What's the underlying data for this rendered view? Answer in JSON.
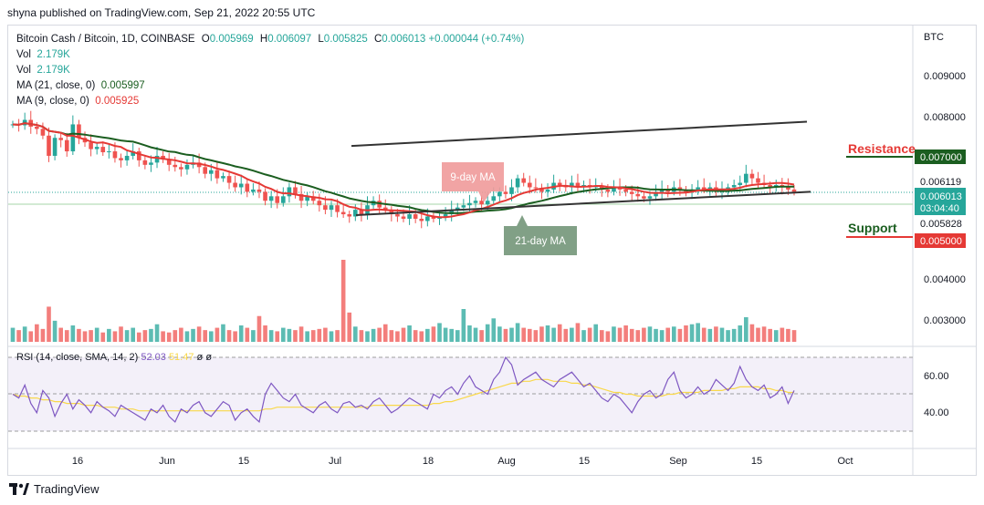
{
  "header": {
    "publisher": "shyna published on TradingView.com, Sep 21, 2022 20:55 UTC"
  },
  "legend": {
    "symbol": "Bitcoin Cash / Bitcoin, 1D, COINBASE",
    "open_key": "O",
    "open": "0.005969",
    "high_key": "H",
    "high": "0.006097",
    "low_key": "L",
    "low": "0.005825",
    "close_key": "C",
    "close": "0.006013",
    "change": "+0.000044 (+0.74%)",
    "vol1_label": "Vol",
    "vol1_value": "2.179K",
    "vol2_label": "Vol",
    "vol2_value": "2.179K",
    "ma21_label": "MA (21, close, 0)",
    "ma21_value": "0.005997",
    "ma9_label": "MA (9, close, 0)",
    "ma9_value": "0.005925"
  },
  "rsi_legend": {
    "label": "RSI (14, close, SMA, 14, 2)",
    "rsi_value": "52.03",
    "sma_value": "51.47",
    "extra1": "ø",
    "extra2": "ø"
  },
  "price_axis": {
    "currency": "BTC",
    "ticks": [
      "0.009000",
      "0.008000",
      "0.004000",
      "0.003000"
    ],
    "tag_6119": "0.006119",
    "tag_current": "0.006013",
    "tag_countdown": "03:04:40",
    "tag_5828": "0.005828",
    "tag_resistance": "0.007000",
    "tag_support": "0.005000"
  },
  "rsi_axis": {
    "ticks": [
      "60.00",
      "40.00"
    ]
  },
  "time_axis": {
    "labels": [
      "16",
      "Jun",
      "15",
      "Jul",
      "18",
      "Aug",
      "15",
      "Sep",
      "15",
      "Oct"
    ]
  },
  "annotations": {
    "ma9": "9-day MA",
    "ma21": "21-day MA",
    "resistance": "Resistance",
    "support": "Support"
  },
  "footer": {
    "brand": "TradingView"
  },
  "colors": {
    "up": "#26a69a",
    "down": "#ef5350",
    "ma9": "#e53935",
    "ma21": "#1b5e20",
    "rsi": "#7e57c2",
    "rsi_sma": "#f9d84a",
    "resistance": "#1b5e20",
    "support": "#e53935"
  },
  "chart_data": [
    {
      "type": "candlestick",
      "title": "Bitcoin Cash / Bitcoin, 1D, COINBASE",
      "ylabel": "BTC",
      "ylim": [
        0.0026,
        0.0097
      ],
      "x_ticks": [
        "16",
        "Jun",
        "15",
        "Jul",
        "18",
        "Aug",
        "15",
        "Sep",
        "15",
        "Oct"
      ],
      "y_ticks": [
        0.009,
        0.008,
        0.004,
        0.003
      ],
      "series": [
        {
          "name": "BCH/BTC",
          "close": [
            0.0075,
            0.00748,
            0.0076,
            0.00745,
            0.0074,
            0.00725,
            0.0068,
            0.0072,
            0.00715,
            0.0069,
            0.0075,
            0.0072,
            0.0071,
            0.00695,
            0.007,
            0.00688,
            0.0069,
            0.00675,
            0.0067,
            0.0068,
            0.0069,
            0.0067,
            0.0066,
            0.00665,
            0.0068,
            0.00672,
            0.0066,
            0.00655,
            0.0065,
            0.0066,
            0.00665,
            0.00655,
            0.0064,
            0.00648,
            0.0063,
            0.00635,
            0.0062,
            0.0061,
            0.00618,
            0.006,
            0.00605,
            0.006,
            0.0058,
            0.0059,
            0.00575,
            0.0059,
            0.0061,
            0.00595,
            0.0058,
            0.0059,
            0.0058,
            0.0057,
            0.0056,
            0.0057,
            0.00555,
            0.0055,
            0.00545,
            0.0056,
            0.0055,
            0.0057,
            0.0058,
            0.00565,
            0.0056,
            0.0055,
            0.00545,
            0.0054,
            0.0055,
            0.0054,
            0.00535,
            0.00545,
            0.0054,
            0.00545,
            0.0055,
            0.0056,
            0.00565,
            0.0057,
            0.00575,
            0.0058,
            0.00572,
            0.0058,
            0.0059,
            0.006,
            0.00595,
            0.0061,
            0.0063,
            0.0062,
            0.0061,
            0.00608,
            0.006,
            0.00605,
            0.0062,
            0.00615,
            0.0061,
            0.0062,
            0.0061,
            0.00615,
            0.0061,
            0.00612,
            0.00605,
            0.006,
            0.0061,
            0.00605,
            0.006,
            0.00595,
            0.0059,
            0.00585,
            0.0059,
            0.006,
            0.00605,
            0.006,
            0.0061,
            0.00605,
            0.006,
            0.00605,
            0.0061,
            0.00605,
            0.0061,
            0.006,
            0.00605,
            0.0061,
            0.00615,
            0.0062,
            0.0064,
            0.0063,
            0.0062,
            0.00615,
            0.0061,
            0.00615,
            0.0061,
            0.00605,
            0.006
          ]
        },
        {
          "name": "MA (21, close, 0)"
        },
        {
          "name": "MA (9, close, 0)"
        }
      ],
      "trendlines": {
        "upper": [
          [
            0.00676,
            0.00702
          ],
          [
            0.00714,
            0.00756
          ]
        ],
        "lower": [
          [
            0.00578,
            0.00548
          ],
          [
            0.0062,
            0.006
          ]
        ]
      },
      "levels": {
        "resistance": 0.007,
        "support": 0.005,
        "current": 0.006013
      }
    },
    {
      "type": "bar",
      "ylabel": "Vol",
      "values": [
        1.2,
        1.0,
        1.3,
        0.9,
        1.5,
        1.1,
        3.0,
        1.8,
        1.2,
        1.0,
        1.4,
        1.1,
        0.9,
        1.0,
        1.2,
        0.8,
        1.1,
        0.9,
        1.3,
        1.0,
        1.2,
        0.8,
        1.0,
        1.1,
        1.5,
        0.9,
        0.8,
        1.0,
        1.2,
        0.9,
        1.1,
        1.3,
        1.0,
        0.9,
        1.2,
        1.5,
        1.0,
        0.9,
        1.4,
        1.2,
        1.0,
        2.2,
        1.4,
        1.0,
        0.9,
        1.2,
        1.1,
        1.0,
        1.3,
        0.9,
        1.0,
        1.1,
        1.2,
        0.9,
        1.0,
        7.0,
        2.5,
        1.3,
        1.0,
        0.9,
        1.1,
        1.2,
        1.5,
        1.0,
        0.9,
        1.2,
        1.4,
        1.0,
        0.9,
        1.1,
        1.3,
        1.6,
        1.2,
        1.1,
        1.0,
        2.8,
        1.4,
        1.2,
        1.0,
        1.5,
        2.0,
        1.3,
        1.1,
        1.2,
        1.6,
        1.2,
        1.1,
        1.0,
        1.3,
        1.4,
        1.2,
        1.5,
        1.1,
        1.2,
        1.6,
        1.0,
        1.2,
        1.5,
        1.0,
        0.9,
        1.3,
        1.2,
        1.4,
        1.1,
        1.0,
        1.2,
        1.3,
        1.1,
        1.0,
        1.2,
        1.3,
        1.1,
        1.4,
        1.5,
        1.6,
        1.2,
        1.1,
        1.3,
        1.2,
        1.0,
        1.1,
        1.4,
        2.1,
        1.5,
        1.2,
        1.3,
        1.1,
        1.0,
        1.2,
        1.1,
        1.0
      ]
    },
    {
      "type": "line",
      "title": "RSI (14, close, SMA, 14, 2)",
      "ylim": [
        30,
        70
      ],
      "y_ticks": [
        60,
        40
      ],
      "series": [
        {
          "name": "RSI",
          "values": [
            50,
            48,
            55,
            45,
            40,
            52,
            48,
            38,
            45,
            50,
            42,
            47,
            44,
            40,
            46,
            43,
            41,
            38,
            44,
            42,
            40,
            38,
            36,
            42,
            40,
            44,
            38,
            35,
            42,
            40,
            44,
            46,
            40,
            38,
            42,
            46,
            44,
            36,
            40,
            42,
            38,
            35,
            50,
            56,
            52,
            48,
            46,
            50,
            44,
            42,
            40,
            44,
            46,
            42,
            40,
            45,
            46,
            43,
            44,
            42,
            46,
            48,
            44,
            40,
            42,
            45,
            48,
            46,
            44,
            42,
            50,
            48,
            52,
            54,
            50,
            56,
            60,
            54,
            52,
            50,
            58,
            62,
            70,
            66,
            55,
            58,
            60,
            62,
            58,
            56,
            54,
            58,
            60,
            62,
            58,
            54,
            56,
            52,
            48,
            46,
            50,
            48,
            44,
            40,
            46,
            50,
            52,
            48,
            50,
            58,
            62,
            52,
            48,
            50,
            54,
            50,
            52,
            58,
            55,
            52,
            56,
            65,
            58,
            54,
            52,
            55,
            48,
            50,
            54,
            45,
            52
          ]
        },
        {
          "name": "RSI SMA",
          "values": [
            50,
            49,
            49,
            48,
            48,
            47,
            47,
            46,
            46,
            45,
            45,
            45,
            44,
            44,
            44,
            43,
            43,
            43,
            42,
            42,
            42,
            41,
            41,
            41,
            41,
            41,
            41,
            41,
            41,
            41,
            41,
            41,
            41,
            41,
            41,
            41,
            41,
            41,
            41,
            41,
            41,
            41,
            42,
            42,
            43,
            43,
            43,
            43,
            43,
            43,
            43,
            43,
            43,
            43,
            43,
            43,
            43,
            43,
            43,
            43,
            44,
            44,
            44,
            44,
            44,
            44,
            44,
            44,
            44,
            44,
            45,
            45,
            46,
            46,
            47,
            48,
            49,
            50,
            51,
            52,
            53,
            54,
            55,
            56,
            56,
            57,
            57,
            58,
            58,
            58,
            57,
            57,
            57,
            56,
            56,
            55,
            55,
            54,
            53,
            52,
            51,
            51,
            50,
            50,
            49,
            49,
            49,
            49,
            49,
            50,
            50,
            51,
            51,
            51,
            51,
            52,
            52,
            52,
            52,
            53,
            53,
            54,
            54,
            54,
            54,
            53,
            53,
            52,
            52,
            51,
            51
          ]
        }
      ],
      "band": [
        30,
        70
      ]
    }
  ]
}
